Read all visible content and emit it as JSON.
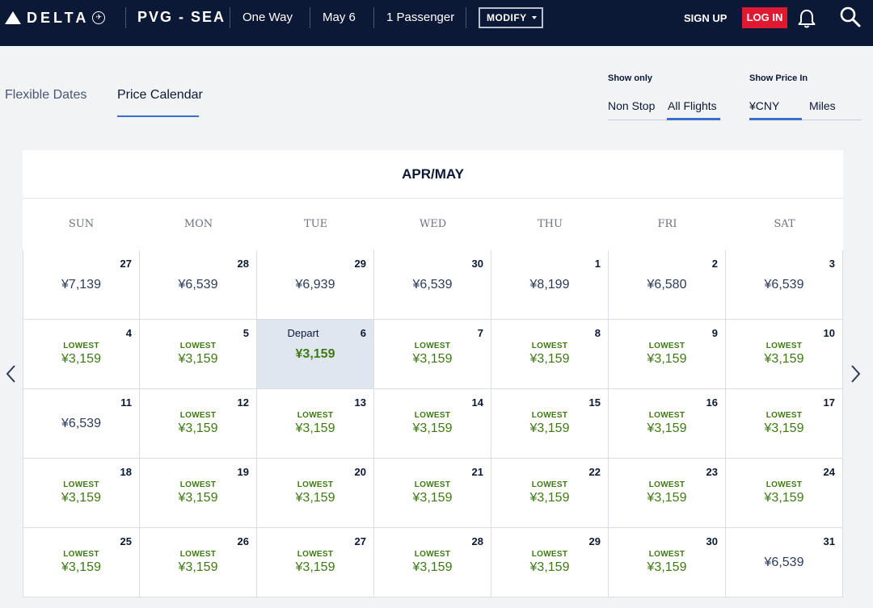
{
  "header": {
    "brand": "DELTA",
    "route": "PVG - SEA",
    "trip_type": "One Way",
    "date": "May 6",
    "passengers": "1 Passenger",
    "modify_label": "MODIFY",
    "signup_label": "SIGN UP",
    "login_label": "LOG IN"
  },
  "tabs": [
    {
      "label": "Flexible Dates",
      "active": false
    },
    {
      "label": "Price Calendar",
      "active": true
    }
  ],
  "filters": {
    "show_only": {
      "label": "Show only",
      "options": [
        "Non Stop",
        "All Flights"
      ],
      "selected": "All Flights"
    },
    "show_price_in": {
      "label": "Show Price In",
      "options": [
        "¥CNY",
        "Miles"
      ],
      "selected": "¥CNY"
    }
  },
  "calendar": {
    "title": "APR/MAY",
    "weekdays": [
      "SUN",
      "MON",
      "TUE",
      "WED",
      "THU",
      "FRI",
      "SAT"
    ],
    "lowest_label": "LOWEST",
    "depart_label": "Depart",
    "weeks": [
      [
        {
          "day": "27",
          "price": "¥7,139",
          "lowest": false
        },
        {
          "day": "28",
          "price": "¥6,539",
          "lowest": false
        },
        {
          "day": "29",
          "price": "¥6,939",
          "lowest": false
        },
        {
          "day": "30",
          "price": "¥6,539",
          "lowest": false
        },
        {
          "day": "1",
          "price": "¥8,199",
          "lowest": false
        },
        {
          "day": "2",
          "price": "¥6,580",
          "lowest": false
        },
        {
          "day": "3",
          "price": "¥6,539",
          "lowest": false
        }
      ],
      [
        {
          "day": "4",
          "price": "¥3,159",
          "lowest": true
        },
        {
          "day": "5",
          "price": "¥3,159",
          "lowest": true
        },
        {
          "day": "6",
          "price": "¥3,159",
          "lowest": false,
          "selected": true
        },
        {
          "day": "7",
          "price": "¥3,159",
          "lowest": true
        },
        {
          "day": "8",
          "price": "¥3,159",
          "lowest": true
        },
        {
          "day": "9",
          "price": "¥3,159",
          "lowest": true
        },
        {
          "day": "10",
          "price": "¥3,159",
          "lowest": true
        }
      ],
      [
        {
          "day": "11",
          "price": "¥6,539",
          "lowest": false
        },
        {
          "day": "12",
          "price": "¥3,159",
          "lowest": true
        },
        {
          "day": "13",
          "price": "¥3,159",
          "lowest": true
        },
        {
          "day": "14",
          "price": "¥3,159",
          "lowest": true
        },
        {
          "day": "15",
          "price": "¥3,159",
          "lowest": true
        },
        {
          "day": "16",
          "price": "¥3,159",
          "lowest": true
        },
        {
          "day": "17",
          "price": "¥3,159",
          "lowest": true
        }
      ],
      [
        {
          "day": "18",
          "price": "¥3,159",
          "lowest": true
        },
        {
          "day": "19",
          "price": "¥3,159",
          "lowest": true
        },
        {
          "day": "20",
          "price": "¥3,159",
          "lowest": true
        },
        {
          "day": "21",
          "price": "¥3,159",
          "lowest": true
        },
        {
          "day": "22",
          "price": "¥3,159",
          "lowest": true
        },
        {
          "day": "23",
          "price": "¥3,159",
          "lowest": true
        },
        {
          "day": "24",
          "price": "¥3,159",
          "lowest": true
        }
      ],
      [
        {
          "day": "25",
          "price": "¥3,159",
          "lowest": true
        },
        {
          "day": "26",
          "price": "¥3,159",
          "lowest": true
        },
        {
          "day": "27",
          "price": "¥3,159",
          "lowest": true
        },
        {
          "day": "28",
          "price": "¥3,159",
          "lowest": true
        },
        {
          "day": "29",
          "price": "¥3,159",
          "lowest": true
        },
        {
          "day": "30",
          "price": "¥3,159",
          "lowest": true
        },
        {
          "day": "31",
          "price": "¥6,539",
          "lowest": false
        }
      ]
    ]
  },
  "icons": {
    "logo": "delta-widget-icon",
    "globe": "skyteam-globe-icon",
    "bell": "bell-icon",
    "search": "search-icon",
    "prev": "chevron-left-icon",
    "next": "chevron-right-icon"
  },
  "colors": {
    "header_bg": "#0b1836",
    "login_bg": "#e01933",
    "accent": "#3b6ed1",
    "lowest_green": "#3d7a14",
    "selected_bg": "#dfe6ef"
  }
}
